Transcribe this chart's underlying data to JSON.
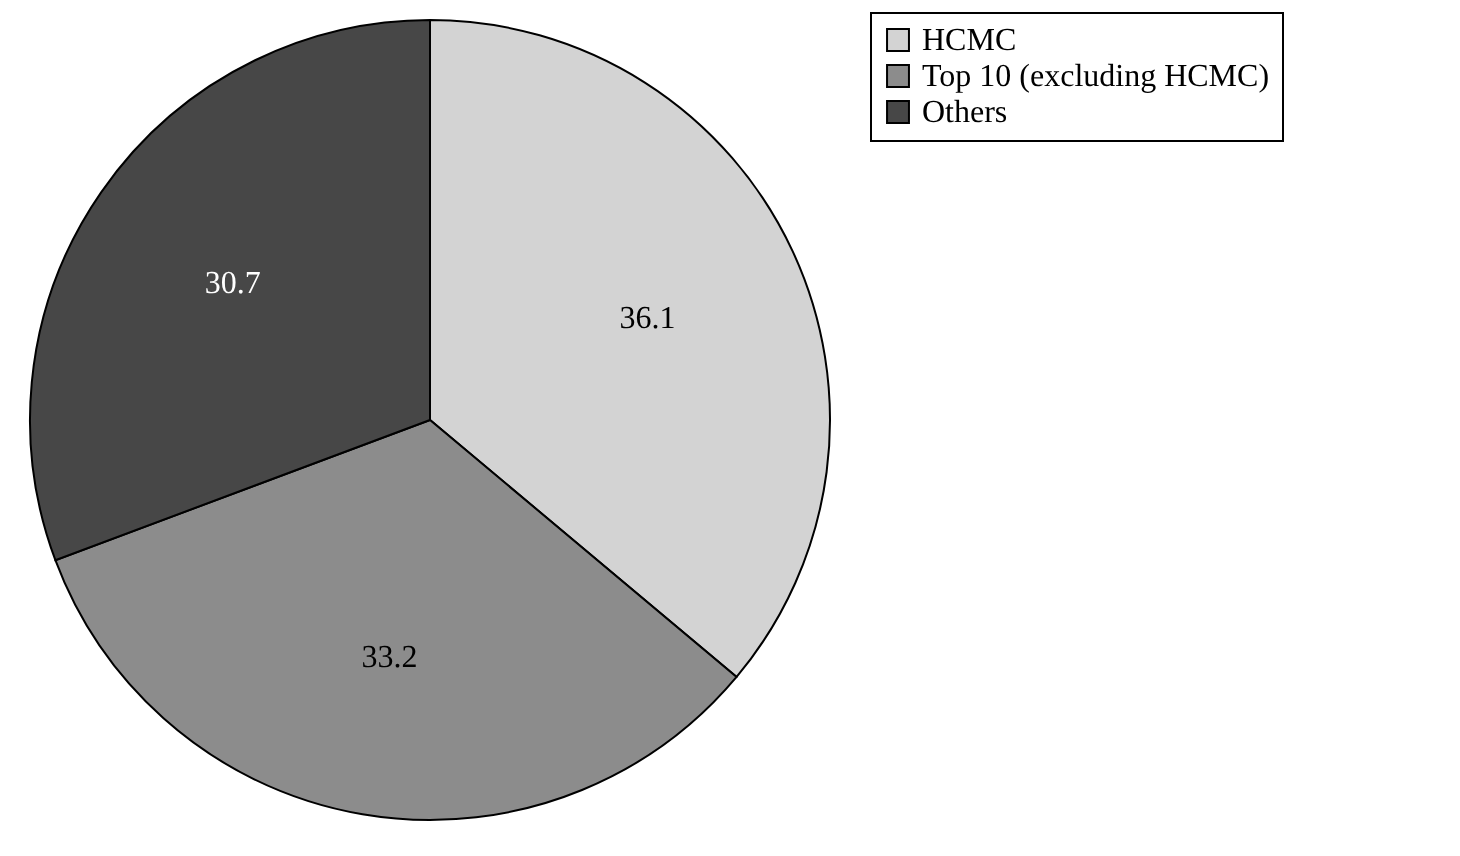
{
  "chart_data": {
    "type": "pie",
    "categories": [
      "HCMC",
      "Top 10 (excluding HCMC)",
      "Others"
    ],
    "values": [
      36.1,
      33.2,
      30.7
    ],
    "colors": [
      "#d3d3d3",
      "#8c8c8c",
      "#474747"
    ],
    "data_labels": true,
    "legend": "right"
  }
}
